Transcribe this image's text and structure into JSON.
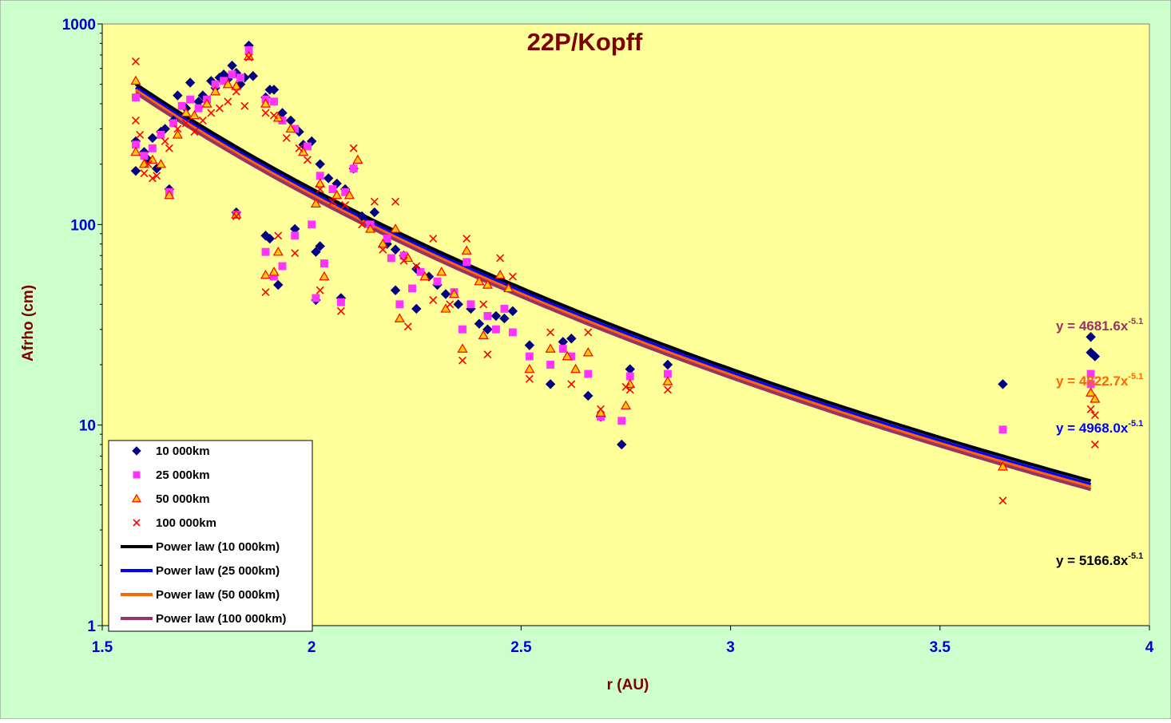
{
  "chart_data": {
    "type": "scatter",
    "title": "22P/Kopff",
    "xlabel": "r (AU)",
    "ylabel": "Afrho (cm)",
    "xlim": [
      1.5,
      4
    ],
    "ylim": [
      1,
      1000
    ],
    "y_scale": "log",
    "x_ticks": [
      "1.5",
      "2",
      "2.5",
      "3",
      "3.5",
      "4"
    ],
    "y_ticks": [
      "1",
      "10",
      "100",
      "1000"
    ],
    "grid": false,
    "legend_position": "bottom-left",
    "colors": {
      "outer_background": "#CCFFCC",
      "plot_background": "#FFFF99",
      "tick_labels": "#0000CC",
      "axis_titles": "#800000"
    },
    "series": [
      {
        "name": "10 000km",
        "marker": "diamond",
        "color": "#000080",
        "points": [
          [
            1.58,
            185
          ],
          [
            1.58,
            260
          ],
          [
            1.6,
            230
          ],
          [
            1.61,
            210
          ],
          [
            1.62,
            270
          ],
          [
            1.63,
            190
          ],
          [
            1.64,
            290
          ],
          [
            1.65,
            300
          ],
          [
            1.66,
            150
          ],
          [
            1.67,
            330
          ],
          [
            1.68,
            440
          ],
          [
            1.7,
            380
          ],
          [
            1.71,
            510
          ],
          [
            1.73,
            410
          ],
          [
            1.74,
            440
          ],
          [
            1.76,
            520
          ],
          [
            1.77,
            480
          ],
          [
            1.78,
            540
          ],
          [
            1.79,
            560
          ],
          [
            1.8,
            530
          ],
          [
            1.81,
            620
          ],
          [
            1.82,
            570
          ],
          [
            1.83,
            500
          ],
          [
            1.84,
            540
          ],
          [
            1.85,
            780
          ],
          [
            1.86,
            550
          ],
          [
            1.89,
            430
          ],
          [
            1.9,
            470
          ],
          [
            1.91,
            470
          ],
          [
            1.93,
            360
          ],
          [
            1.95,
            330
          ],
          [
            1.97,
            290
          ],
          [
            1.98,
            250
          ],
          [
            2.0,
            260
          ],
          [
            2.02,
            200
          ],
          [
            2.04,
            170
          ],
          [
            2.06,
            160
          ],
          [
            2.08,
            150
          ],
          [
            2.1,
            190
          ],
          [
            2.12,
            110
          ],
          [
            2.15,
            115
          ],
          [
            2.18,
            80
          ],
          [
            2.2,
            75
          ],
          [
            2.22,
            70
          ],
          [
            2.25,
            60
          ],
          [
            2.28,
            55
          ],
          [
            2.3,
            50
          ],
          [
            2.32,
            45
          ],
          [
            2.35,
            40
          ],
          [
            2.38,
            38
          ],
          [
            2.4,
            32
          ],
          [
            2.42,
            30
          ],
          [
            2.44,
            35
          ],
          [
            2.46,
            34
          ],
          [
            2.48,
            37
          ],
          [
            1.82,
            115
          ],
          [
            1.89,
            88
          ],
          [
            1.9,
            85
          ],
          [
            1.92,
            50
          ],
          [
            1.96,
            95
          ],
          [
            2.01,
            73
          ],
          [
            2.02,
            78
          ],
          [
            2.01,
            42
          ],
          [
            2.07,
            43
          ],
          [
            2.2,
            47
          ],
          [
            2.25,
            38
          ],
          [
            2.52,
            25
          ],
          [
            2.57,
            16
          ],
          [
            2.6,
            26
          ],
          [
            2.62,
            27
          ],
          [
            2.66,
            14
          ],
          [
            2.69,
            11
          ],
          [
            2.74,
            8
          ],
          [
            2.76,
            19
          ],
          [
            2.85,
            20
          ],
          [
            3.65,
            16
          ],
          [
            3.86,
            27.5
          ],
          [
            3.86,
            23
          ],
          [
            3.87,
            22
          ]
        ]
      },
      {
        "name": "25 000km",
        "marker": "square",
        "color": "#FF33FF",
        "points": [
          [
            1.58,
            430
          ],
          [
            1.58,
            250
          ],
          [
            1.6,
            220
          ],
          [
            1.62,
            240
          ],
          [
            1.64,
            280
          ],
          [
            1.66,
            145
          ],
          [
            1.67,
            320
          ],
          [
            1.69,
            390
          ],
          [
            1.71,
            420
          ],
          [
            1.73,
            380
          ],
          [
            1.75,
            420
          ],
          [
            1.77,
            500
          ],
          [
            1.79,
            520
          ],
          [
            1.81,
            560
          ],
          [
            1.83,
            540
          ],
          [
            1.85,
            740
          ],
          [
            1.89,
            420
          ],
          [
            1.91,
            410
          ],
          [
            1.93,
            330
          ],
          [
            1.96,
            300
          ],
          [
            1.99,
            245
          ],
          [
            2.02,
            175
          ],
          [
            2.05,
            150
          ],
          [
            2.08,
            145
          ],
          [
            2.1,
            190
          ],
          [
            2.14,
            100
          ],
          [
            2.18,
            85
          ],
          [
            2.22,
            70
          ],
          [
            2.26,
            58
          ],
          [
            2.3,
            52
          ],
          [
            2.34,
            46
          ],
          [
            2.38,
            40
          ],
          [
            2.42,
            35
          ],
          [
            2.46,
            38
          ],
          [
            1.82,
            112
          ],
          [
            1.89,
            73
          ],
          [
            1.91,
            55
          ],
          [
            1.93,
            62
          ],
          [
            1.96,
            88
          ],
          [
            2.0,
            100
          ],
          [
            2.03,
            64
          ],
          [
            2.01,
            43
          ],
          [
            2.07,
            41
          ],
          [
            2.19,
            68
          ],
          [
            2.21,
            40
          ],
          [
            2.24,
            48
          ],
          [
            2.37,
            65
          ],
          [
            2.36,
            30
          ],
          [
            2.44,
            30
          ],
          [
            2.48,
            29
          ],
          [
            2.52,
            22
          ],
          [
            2.57,
            20
          ],
          [
            2.6,
            24
          ],
          [
            2.62,
            22
          ],
          [
            2.66,
            18
          ],
          [
            2.69,
            11
          ],
          [
            2.74,
            10.5
          ],
          [
            2.76,
            17.5
          ],
          [
            2.85,
            18
          ],
          [
            3.65,
            9.5
          ],
          [
            3.86,
            18
          ],
          [
            3.86,
            16
          ]
        ]
      },
      {
        "name": "50 000km",
        "marker": "triangle",
        "color": "#FFCC00",
        "stroke": "#FF0000",
        "points": [
          [
            1.58,
            520
          ],
          [
            1.58,
            230
          ],
          [
            1.6,
            200
          ],
          [
            1.62,
            210
          ],
          [
            1.64,
            200
          ],
          [
            1.66,
            140
          ],
          [
            1.68,
            280
          ],
          [
            1.7,
            360
          ],
          [
            1.72,
            350
          ],
          [
            1.75,
            400
          ],
          [
            1.77,
            460
          ],
          [
            1.8,
            500
          ],
          [
            1.82,
            490
          ],
          [
            1.85,
            690
          ],
          [
            1.89,
            400
          ],
          [
            1.92,
            340
          ],
          [
            1.95,
            300
          ],
          [
            1.98,
            230
          ],
          [
            2.02,
            160
          ],
          [
            2.06,
            140
          ],
          [
            2.09,
            140
          ],
          [
            2.11,
            210
          ],
          [
            2.14,
            95
          ],
          [
            2.17,
            80
          ],
          [
            2.2,
            95
          ],
          [
            2.23,
            68
          ],
          [
            2.27,
            55
          ],
          [
            2.31,
            58
          ],
          [
            2.34,
            45
          ],
          [
            2.37,
            74
          ],
          [
            2.4,
            52
          ],
          [
            2.42,
            50
          ],
          [
            2.45,
            56
          ],
          [
            1.82,
            112
          ],
          [
            1.89,
            56
          ],
          [
            1.91,
            58
          ],
          [
            1.92,
            73
          ],
          [
            2.01,
            127
          ],
          [
            2.03,
            55
          ],
          [
            2.21,
            34
          ],
          [
            2.32,
            38
          ],
          [
            2.36,
            24
          ],
          [
            2.41,
            28
          ],
          [
            2.47,
            48
          ],
          [
            2.52,
            19
          ],
          [
            2.57,
            24
          ],
          [
            2.61,
            22
          ],
          [
            2.63,
            19
          ],
          [
            2.66,
            23
          ],
          [
            2.69,
            11.5
          ],
          [
            2.75,
            12.5
          ],
          [
            2.76,
            16
          ],
          [
            2.85,
            16.5
          ],
          [
            3.65,
            6.2
          ],
          [
            3.86,
            14.5
          ],
          [
            3.87,
            13.5
          ]
        ]
      },
      {
        "name": "100 000km",
        "marker": "x",
        "color": "#FF0000",
        "points": [
          [
            1.58,
            650
          ],
          [
            1.58,
            330
          ],
          [
            1.59,
            280
          ],
          [
            1.6,
            180
          ],
          [
            1.61,
            200
          ],
          [
            1.62,
            170
          ],
          [
            1.63,
            175
          ],
          [
            1.65,
            260
          ],
          [
            1.66,
            240
          ],
          [
            1.68,
            300
          ],
          [
            1.7,
            320
          ],
          [
            1.72,
            290
          ],
          [
            1.74,
            330
          ],
          [
            1.76,
            360
          ],
          [
            1.78,
            380
          ],
          [
            1.8,
            410
          ],
          [
            1.82,
            460
          ],
          [
            1.84,
            390
          ],
          [
            1.85,
            680
          ],
          [
            1.89,
            360
          ],
          [
            1.91,
            350
          ],
          [
            1.94,
            270
          ],
          [
            1.97,
            240
          ],
          [
            1.99,
            210
          ],
          [
            2.02,
            150
          ],
          [
            2.05,
            130
          ],
          [
            2.08,
            125
          ],
          [
            2.1,
            240
          ],
          [
            2.12,
            100
          ],
          [
            2.15,
            130
          ],
          [
            2.17,
            75
          ],
          [
            2.2,
            130
          ],
          [
            2.22,
            66
          ],
          [
            2.25,
            62
          ],
          [
            2.29,
            85
          ],
          [
            2.33,
            40
          ],
          [
            2.37,
            85
          ],
          [
            2.41,
            40
          ],
          [
            2.45,
            68
          ],
          [
            2.48,
            55
          ],
          [
            1.82,
            110
          ],
          [
            1.89,
            46
          ],
          [
            1.92,
            88
          ],
          [
            1.96,
            72
          ],
          [
            2.02,
            47
          ],
          [
            2.07,
            37
          ],
          [
            2.23,
            31
          ],
          [
            2.29,
            42
          ],
          [
            2.36,
            21
          ],
          [
            2.42,
            22.5
          ],
          [
            2.52,
            17
          ],
          [
            2.57,
            29
          ],
          [
            2.62,
            16
          ],
          [
            2.66,
            29
          ],
          [
            2.69,
            12
          ],
          [
            2.75,
            15.5
          ],
          [
            2.76,
            15
          ],
          [
            2.85,
            15
          ],
          [
            3.65,
            4.2
          ],
          [
            3.86,
            12
          ],
          [
            3.87,
            8
          ],
          [
            3.87,
            11.2
          ]
        ]
      }
    ],
    "trendlines": [
      {
        "name": "Power law (10 000km)",
        "color": "#000000",
        "coef": 5166.8,
        "exp": -5.1,
        "label": "y = 5166.8x",
        "label_exp": "-5.1"
      },
      {
        "name": "Power law (25 000km)",
        "color": "#0000FF",
        "coef": 4968.0,
        "exp": -5.1,
        "label": "y = 4968.0x",
        "label_exp": "-5.1"
      },
      {
        "name": "Power law (50 000km)",
        "color": "#FF6600",
        "coef": 4822.7,
        "exp": -5.1,
        "label": "y = 4822.7x",
        "label_exp": "-5.1"
      },
      {
        "name": "Power law (100 000km)",
        "color": "#993366",
        "coef": 4681.6,
        "exp": -5.1,
        "label": "y = 4681.6x",
        "label_exp": "-5.1"
      }
    ],
    "trendline_x_range": [
      1.58,
      3.86
    ]
  }
}
